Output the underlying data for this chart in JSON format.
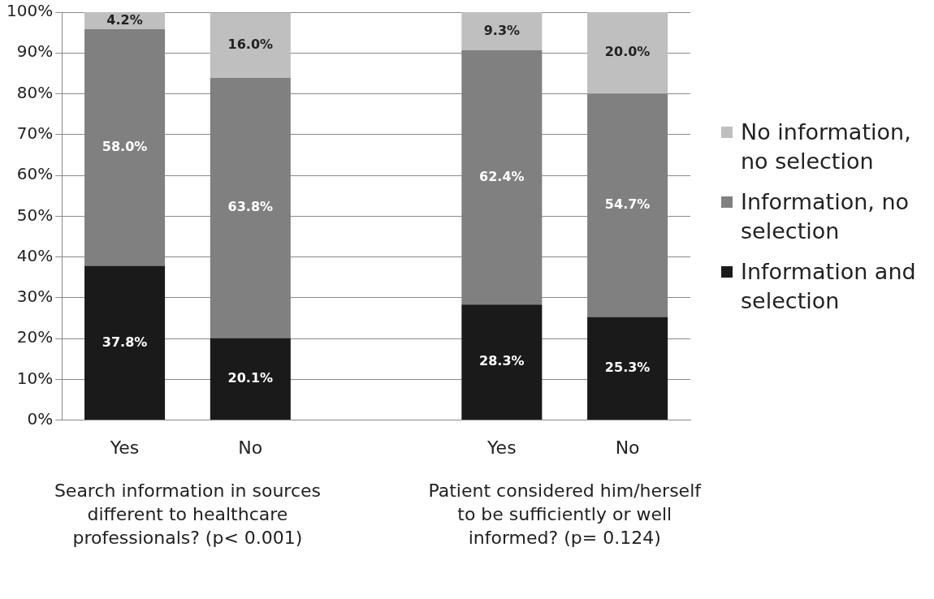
{
  "chart_data": {
    "type": "bar",
    "stacked": true,
    "categories": [
      "Yes",
      "No",
      null,
      "Yes",
      "No"
    ],
    "series": [
      {
        "name": "Information and selection",
        "color": "#1a1a1a",
        "values": [
          37.8,
          20.1,
          null,
          28.3,
          25.3
        ],
        "value_labels": [
          "37.8%",
          "20.1%",
          null,
          "28.3%",
          "25.3%"
        ]
      },
      {
        "name": "Information, no selection",
        "color": "#808080",
        "values": [
          58.0,
          63.8,
          null,
          62.4,
          54.7
        ],
        "value_labels": [
          "58.0%",
          "63.8%",
          null,
          "62.4%",
          "54.7%"
        ]
      },
      {
        "name": "No information, no selection",
        "color": "#bfbfbf",
        "values": [
          4.2,
          16.0,
          null,
          9.3,
          20.0
        ],
        "value_labels": [
          "4.2%",
          "16.0%",
          null,
          "9.3%",
          "20.0%"
        ]
      }
    ],
    "ylim": [
      0,
      100
    ],
    "yticks": [
      {
        "value": 0,
        "label": "0%"
      },
      {
        "value": 10,
        "label": "10%"
      },
      {
        "value": 20,
        "label": "20%"
      },
      {
        "value": 30,
        "label": "30%"
      },
      {
        "value": 40,
        "label": "40%"
      },
      {
        "value": 50,
        "label": "50%"
      },
      {
        "value": 60,
        "label": "60%"
      },
      {
        "value": 70,
        "label": "70%"
      },
      {
        "value": 80,
        "label": "80%"
      },
      {
        "value": 90,
        "label": "90%"
      },
      {
        "value": 100,
        "label": "100%"
      }
    ],
    "grid": "y",
    "legend": "right",
    "annotations": [
      "Search information in sources different to healthcare professionals? (p< 0.001)",
      "Patient considered him/herself to be sufficiently or well informed? (p= 0.124)"
    ]
  }
}
